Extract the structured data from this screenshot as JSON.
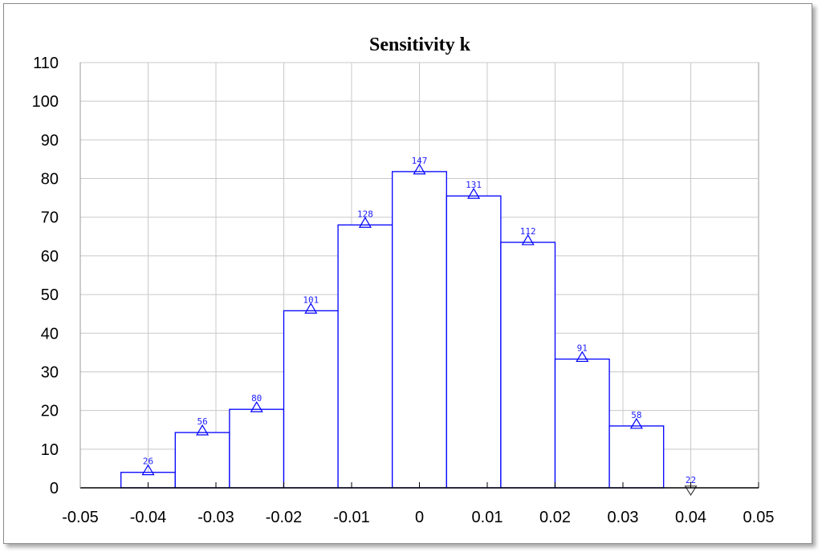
{
  "chart_data": {
    "type": "bar",
    "title": "Sensitivity k",
    "xlabel": "",
    "ylabel": "",
    "xlim": [
      -0.05,
      0.05
    ],
    "ylim": [
      0,
      110
    ],
    "x_ticks": [
      -0.05,
      -0.04,
      -0.03,
      -0.02,
      -0.01,
      0,
      0.01,
      0.02,
      0.03,
      0.04,
      0.05
    ],
    "x_tick_labels": [
      "-0.05",
      "-0.04",
      "-0.03",
      "-0.02",
      "-0.01",
      "0",
      "0.01",
      "0.02",
      "0.03",
      "0.04",
      "0.05"
    ],
    "y_ticks": [
      0,
      10,
      20,
      30,
      40,
      50,
      60,
      70,
      80,
      90,
      100,
      110
    ],
    "y_tick_labels": [
      "0",
      "10",
      "20",
      "30",
      "40",
      "50",
      "60",
      "70",
      "80",
      "90",
      "100",
      "110"
    ],
    "grid": true,
    "bar_color": "#0000ff",
    "bins": [
      {
        "x0": -0.044,
        "x1": -0.036,
        "value": 4,
        "count": "26"
      },
      {
        "x0": -0.036,
        "x1": -0.028,
        "value": 14.3,
        "count": "56"
      },
      {
        "x0": -0.028,
        "x1": -0.02,
        "value": 20.3,
        "count": "80"
      },
      {
        "x0": -0.02,
        "x1": -0.012,
        "value": 45.8,
        "count": "101"
      },
      {
        "x0": -0.012,
        "x1": -0.004,
        "value": 68,
        "count": "128"
      },
      {
        "x0": -0.004,
        "x1": 0.004,
        "value": 81.8,
        "count": "147"
      },
      {
        "x0": 0.004,
        "x1": 0.012,
        "value": 75.5,
        "count": "131"
      },
      {
        "x0": 0.012,
        "x1": 0.02,
        "value": 63.5,
        "count": "112"
      },
      {
        "x0": 0.02,
        "x1": 0.028,
        "value": 33.3,
        "count": "91"
      },
      {
        "x0": 0.028,
        "x1": 0.036,
        "value": 16,
        "count": "58"
      }
    ],
    "extra_marker": {
      "x": 0.04,
      "value": 0,
      "count": "22"
    }
  }
}
